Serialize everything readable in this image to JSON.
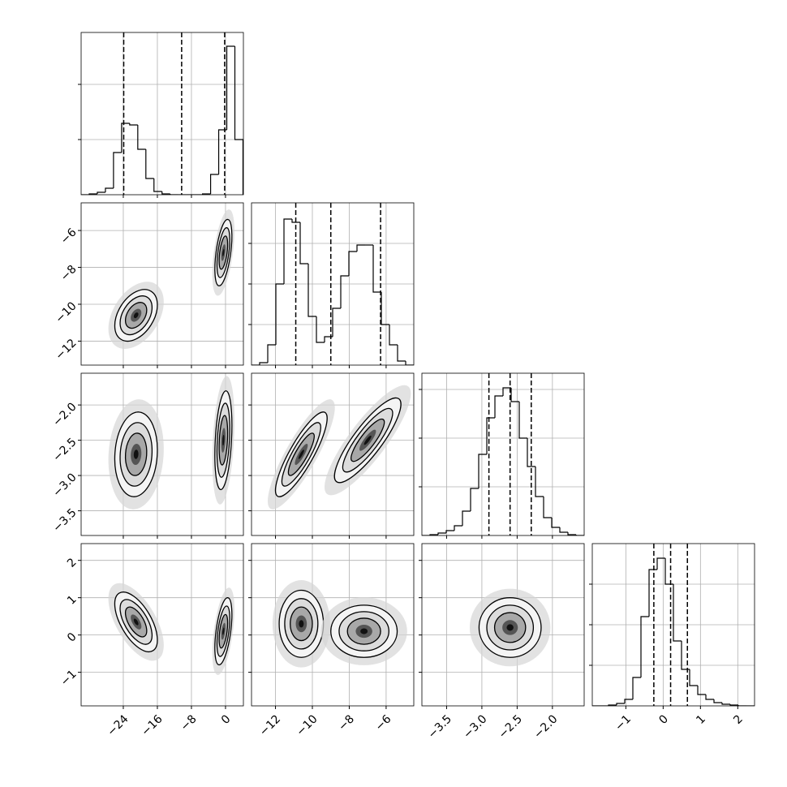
{
  "chart_data": {
    "type": "corner",
    "params": [
      {
        "lim": [
          -33.9,
          4.2
        ],
        "ticks": [
          {
            "value": -24,
            "label": "−24"
          },
          {
            "value": -16,
            "label": "−16"
          },
          {
            "value": -8,
            "label": "−8"
          },
          0
        ],
        "quantiles": [
          -23.9,
          -10.3,
          -0.2
        ],
        "hist": {
          "bins": [
            -33.9,
            -32.0,
            -30.1,
            -28.2,
            -26.3,
            -24.4,
            -22.5,
            -20.6,
            -18.7,
            -16.8,
            -14.9,
            -13.0,
            -11.1,
            -9.2,
            -7.3,
            -5.4,
            -3.5,
            -1.6,
            0.3,
            2.2,
            4.1
          ],
          "counts": [
            0,
            1,
            3,
            8,
            52,
            88,
            86,
            56,
            20,
            4,
            1,
            0,
            0,
            0,
            0,
            1,
            25,
            80,
            183,
            68
          ],
          "ylim": [
            0,
            200
          ],
          "yticks": [
            68,
            136
          ]
        }
      },
      {
        "lim": [
          -13.3,
          -4.5
        ],
        "ticks": [
          {
            "value": -12,
            "label": "−12"
          },
          {
            "value": -10,
            "label": "−10"
          },
          {
            "value": -8,
            "label": "−8"
          },
          {
            "value": -6,
            "label": "−6"
          }
        ],
        "quantiles": [
          -10.9,
          -9.0,
          -6.3
        ],
        "hist": {
          "bins": [
            -13.3,
            -12.86,
            -12.42,
            -11.98,
            -11.54,
            -11.1,
            -10.66,
            -10.22,
            -9.78,
            -9.34,
            -8.9,
            -8.46,
            -8.02,
            -7.58,
            -7.14,
            -6.7,
            -6.26,
            -5.82,
            -5.38,
            -4.94,
            -4.5
          ],
          "counts": [
            0,
            3,
            25,
            100,
            180,
            176,
            125,
            60,
            28,
            35,
            70,
            110,
            140,
            148,
            148,
            90,
            50,
            25,
            5,
            0
          ],
          "ylim": [
            0,
            200
          ],
          "yticks": [
            50,
            100,
            150
          ]
        }
      },
      {
        "lim": [
          -3.85,
          -1.55
        ],
        "ticks": [
          {
            "value": -3.5,
            "label": "−3.5"
          },
          {
            "value": -3.0,
            "label": "−3.0"
          },
          {
            "value": -2.5,
            "label": "−2.5"
          },
          {
            "value": -2.0,
            "label": "−2.0"
          }
        ],
        "quantiles": [
          -2.9,
          -2.6,
          -2.3
        ],
        "hist": {
          "bins": [
            -3.85,
            -3.735,
            -3.62,
            -3.505,
            -3.39,
            -3.275,
            -3.16,
            -3.045,
            -2.93,
            -2.815,
            -2.7,
            -2.585,
            -2.47,
            -2.355,
            -2.24,
            -2.125,
            -2.01,
            -1.895,
            -1.78,
            -1.665,
            -1.55
          ],
          "counts": [
            0,
            1,
            3,
            6,
            12,
            30,
            58,
            100,
            145,
            172,
            182,
            165,
            120,
            85,
            48,
            22,
            10,
            4,
            1,
            0
          ],
          "ylim": [
            0,
            200
          ],
          "yticks": [
            60,
            120,
            180
          ]
        }
      },
      {
        "lim": [
          -1.9,
          2.45
        ],
        "ticks": [
          {
            "value": -1,
            "label": "−1"
          },
          0,
          1,
          2
        ],
        "quantiles": [
          -0.25,
          0.2,
          0.65
        ],
        "hist": {
          "bins": [
            -1.9,
            -1.6825,
            -1.465,
            -1.2475,
            -1.03,
            -0.8125,
            -0.595,
            -0.3775,
            -0.16,
            0.0575,
            0.275,
            0.4925,
            0.71,
            0.9275,
            1.145,
            1.3625,
            1.58,
            1.7975,
            2.015,
            2.2325,
            2.45
          ],
          "counts": [
            0,
            0,
            1,
            3,
            8,
            35,
            110,
            168,
            182,
            150,
            80,
            45,
            25,
            14,
            8,
            4,
            2,
            1,
            0,
            0
          ],
          "ylim": [
            0,
            200
          ],
          "yticks": [
            50,
            100,
            150
          ]
        }
      }
    ],
    "pairs": [
      {
        "blobs": [
          {
            "x": -21,
            "y": -10.6,
            "sx": 2.5,
            "sy": 0.7,
            "rho": 0.4
          },
          {
            "x": -0.5,
            "y": -7.2,
            "sx": 1.0,
            "sy": 0.9,
            "rho": 0.5
          }
        ]
      },
      {
        "blobs": [
          {
            "x": -21,
            "y": -2.7,
            "sx": 2.5,
            "sy": 0.3,
            "rho": 0.1
          },
          {
            "x": -0.5,
            "y": -2.5,
            "sx": 1.0,
            "sy": 0.35,
            "rho": 0.3
          }
        ]
      },
      {
        "blobs": [
          {
            "x": -10.6,
            "y": -2.7,
            "sx": 0.7,
            "sy": 0.3,
            "rho": 0.85
          },
          {
            "x": -7.0,
            "y": -2.5,
            "sx": 0.9,
            "sy": 0.3,
            "rho": 0.85
          }
        ]
      },
      {
        "blobs": [
          {
            "x": -21,
            "y": 0.35,
            "sx": 2.5,
            "sy": 0.4,
            "rho": -0.6
          },
          {
            "x": -0.5,
            "y": 0.1,
            "sx": 1.0,
            "sy": 0.45,
            "rho": 0.5
          }
        ]
      },
      {
        "blobs": [
          {
            "x": -10.6,
            "y": 0.3,
            "sx": 0.6,
            "sy": 0.45,
            "rho": 0.0
          },
          {
            "x": -7.2,
            "y": 0.1,
            "sx": 0.9,
            "sy": 0.35,
            "rho": 0.0
          }
        ]
      },
      {
        "blobs": [
          {
            "x": -2.6,
            "y": 0.2,
            "sx": 0.22,
            "sy": 0.4,
            "rho": 0.0
          }
        ]
      }
    ]
  }
}
